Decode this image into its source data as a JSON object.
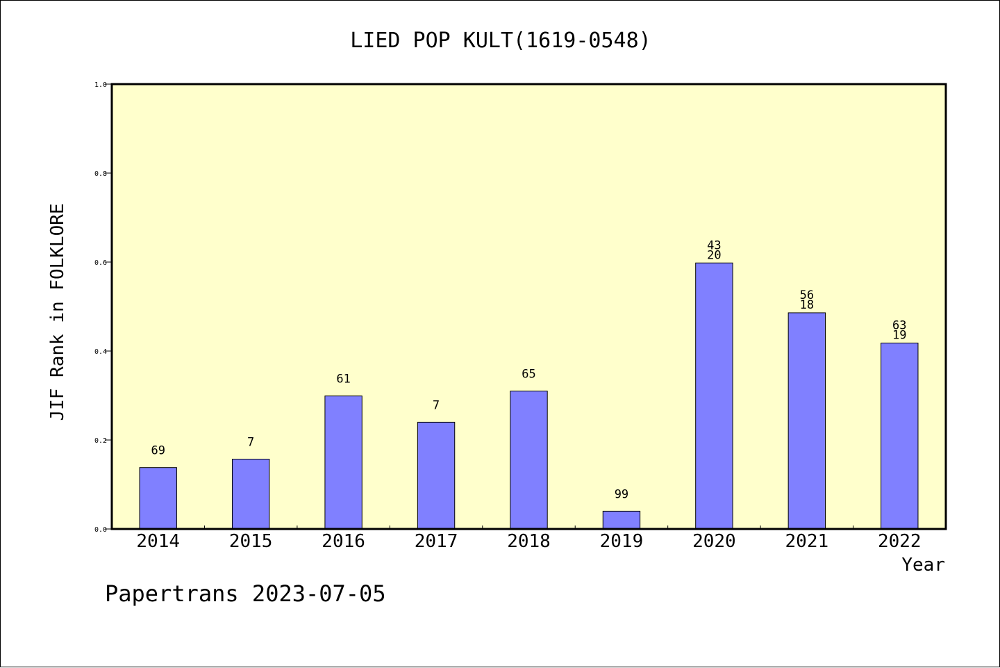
{
  "chart_data": {
    "type": "bar",
    "title": "LIED POP KULT(1619-0548)",
    "xlabel": "Year",
    "ylabel": "JIF Rank in FOLKLORE",
    "footer": "Papertrans 2023-07-05",
    "categories": [
      "2014",
      "2015",
      "2016",
      "2017",
      "2018",
      "2019",
      "2020",
      "2021",
      "2022"
    ],
    "values": [
      0.138,
      0.157,
      0.299,
      0.24,
      0.31,
      0.04,
      0.598,
      0.486,
      0.418
    ],
    "bar_labels": [
      [
        "69"
      ],
      [
        "7"
      ],
      [
        "61"
      ],
      [
        "7"
      ],
      [
        "65"
      ],
      [
        "99"
      ],
      [
        "43",
        "20"
      ],
      [
        "56",
        "18"
      ],
      [
        "63",
        "19"
      ]
    ],
    "ylim": [
      0,
      1.0
    ],
    "yticks": [
      "0.0",
      "0.2",
      "0.4",
      "0.6",
      "0.8",
      "1.0"
    ],
    "grid": false,
    "colors": {
      "plot_background": "#ffffcc",
      "bar_fill": "#8080ff",
      "bar_stroke": "#000000"
    }
  }
}
